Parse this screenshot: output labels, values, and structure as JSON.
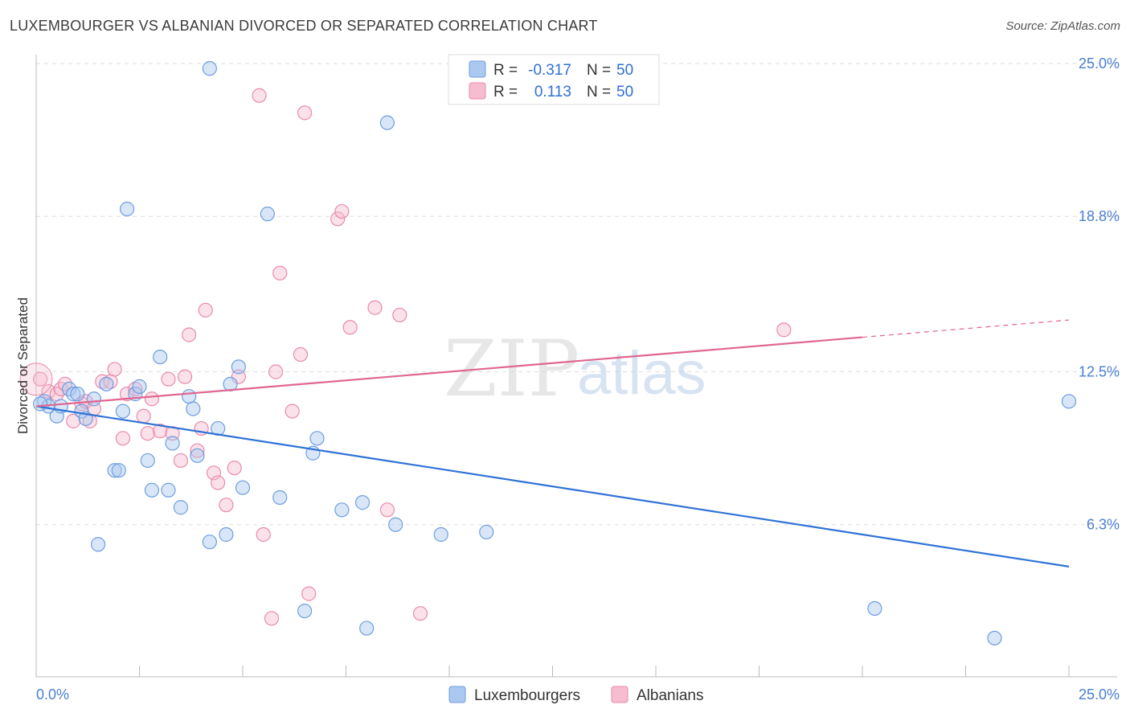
{
  "header": {
    "title": "LUXEMBOURGER VS ALBANIAN DIVORCED OR SEPARATED CORRELATION CHART",
    "source": "Source: ZipAtlas.com"
  },
  "watermark": {
    "part1": "ZIP",
    "part2": "atlas"
  },
  "colors": {
    "blue_fill": "#aac8f0",
    "blue_stroke": "#6d9ee0",
    "blue_line": "#2f72d6",
    "pink_fill": "#f6bcd0",
    "pink_stroke": "#e98aab",
    "pink_line": "#e0668f",
    "grid": "#dddddd",
    "axis_text": "#4a7fd1"
  },
  "legend_top": {
    "rows": [
      {
        "r_label": "R = ",
        "r_value": "-0.317",
        "n_label": "N = ",
        "n_value": "50"
      },
      {
        "r_label": "R = ",
        "r_value": "0.113",
        "n_label": "N = ",
        "n_value": "50"
      }
    ]
  },
  "legend_bottom": {
    "series1": "Luxembourgers",
    "series2": "Albanians"
  },
  "chart_data": {
    "type": "scatter",
    "title": "LUXEMBOURGER VS ALBANIAN DIVORCED OR SEPARATED CORRELATION CHART",
    "xlabel": "",
    "ylabel": "Divorced or Separated",
    "xlim": [
      0,
      25
    ],
    "ylim": [
      0,
      26.5
    ],
    "x_tick_labels": [
      "0.0%",
      "25.0%"
    ],
    "y_ticks": [
      6.3,
      12.5,
      18.8,
      25.0
    ],
    "y_tick_labels": [
      "6.3%",
      "12.5%",
      "18.8%",
      "25.0%"
    ],
    "grid": true,
    "legend_placement": "top-center",
    "series": [
      {
        "name": "Luxembourgers",
        "r": -0.317,
        "n": 50,
        "trend": {
          "x": [
            0,
            25
          ],
          "y": [
            11.1,
            4.6
          ]
        },
        "points": [
          [
            0.2,
            11.3
          ],
          [
            0.3,
            11.1
          ],
          [
            0.5,
            10.7
          ],
          [
            0.6,
            11.1
          ],
          [
            0.8,
            11.8
          ],
          [
            0.9,
            11.6
          ],
          [
            1.0,
            11.6
          ],
          [
            1.1,
            10.9
          ],
          [
            1.2,
            10.6
          ],
          [
            1.4,
            11.4
          ],
          [
            1.5,
            5.5
          ],
          [
            1.7,
            12.0
          ],
          [
            1.9,
            8.5
          ],
          [
            2.0,
            8.5
          ],
          [
            2.1,
            10.9
          ],
          [
            2.2,
            19.1
          ],
          [
            2.4,
            11.6
          ],
          [
            2.5,
            11.9
          ],
          [
            2.7,
            8.9
          ],
          [
            2.8,
            7.7
          ],
          [
            3.0,
            13.1
          ],
          [
            3.2,
            7.7
          ],
          [
            3.3,
            9.6
          ],
          [
            3.5,
            7.0
          ],
          [
            3.7,
            11.5
          ],
          [
            3.8,
            11.0
          ],
          [
            3.9,
            9.1
          ],
          [
            4.2,
            24.8
          ],
          [
            4.2,
            5.6
          ],
          [
            4.4,
            10.2
          ],
          [
            4.6,
            5.9
          ],
          [
            4.7,
            12.0
          ],
          [
            4.9,
            12.7
          ],
          [
            5.0,
            7.8
          ],
          [
            5.6,
            18.9
          ],
          [
            5.9,
            7.4
          ],
          [
            6.5,
            2.8
          ],
          [
            6.7,
            9.2
          ],
          [
            6.8,
            9.8
          ],
          [
            7.4,
            6.9
          ],
          [
            7.9,
            7.2
          ],
          [
            8.0,
            2.1
          ],
          [
            8.5,
            22.6
          ],
          [
            8.7,
            6.3
          ],
          [
            9.8,
            5.9
          ],
          [
            10.9,
            6.0
          ],
          [
            20.3,
            2.9
          ],
          [
            23.2,
            1.7
          ],
          [
            25.0,
            11.3
          ],
          [
            0.1,
            11.2
          ]
        ]
      },
      {
        "name": "Albanians",
        "r": 0.113,
        "n": 50,
        "trend": {
          "x": [
            0,
            20,
            25
          ],
          "y": [
            11.1,
            13.9,
            14.6
          ]
        },
        "points": [
          [
            0.1,
            12.2
          ],
          [
            0.3,
            11.7
          ],
          [
            0.5,
            11.6
          ],
          [
            0.6,
            11.8
          ],
          [
            0.7,
            12.0
          ],
          [
            0.9,
            10.5
          ],
          [
            1.1,
            11.2
          ],
          [
            1.2,
            11.3
          ],
          [
            1.3,
            10.5
          ],
          [
            1.4,
            11.0
          ],
          [
            1.6,
            12.1
          ],
          [
            1.8,
            12.1
          ],
          [
            1.9,
            12.6
          ],
          [
            2.1,
            9.8
          ],
          [
            2.2,
            11.6
          ],
          [
            2.4,
            11.8
          ],
          [
            2.6,
            10.7
          ],
          [
            2.7,
            10.0
          ],
          [
            2.8,
            11.4
          ],
          [
            3.0,
            10.1
          ],
          [
            3.2,
            12.2
          ],
          [
            3.3,
            10.0
          ],
          [
            3.5,
            8.9
          ],
          [
            3.6,
            12.3
          ],
          [
            3.7,
            14.0
          ],
          [
            3.9,
            9.3
          ],
          [
            4.0,
            10.2
          ],
          [
            4.1,
            15.0
          ],
          [
            4.3,
            8.4
          ],
          [
            4.4,
            8.0
          ],
          [
            4.6,
            7.1
          ],
          [
            4.8,
            8.6
          ],
          [
            4.9,
            12.3
          ],
          [
            5.4,
            23.7
          ],
          [
            5.5,
            5.9
          ],
          [
            5.7,
            2.5
          ],
          [
            5.8,
            12.5
          ],
          [
            5.9,
            16.5
          ],
          [
            6.2,
            10.9
          ],
          [
            6.4,
            13.2
          ],
          [
            6.5,
            23.0
          ],
          [
            6.6,
            3.5
          ],
          [
            7.3,
            18.7
          ],
          [
            7.4,
            19.0
          ],
          [
            7.6,
            14.3
          ],
          [
            8.2,
            15.1
          ],
          [
            8.5,
            6.9
          ],
          [
            8.8,
            14.8
          ],
          [
            9.3,
            2.7
          ],
          [
            18.1,
            14.2
          ]
        ]
      }
    ]
  }
}
